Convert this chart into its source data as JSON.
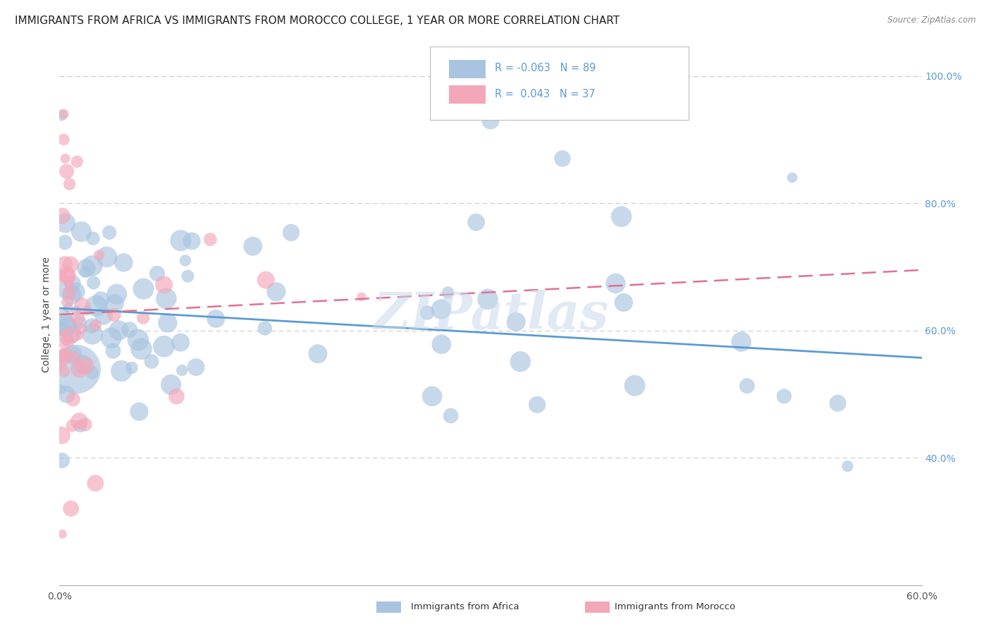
{
  "title": "IMMIGRANTS FROM AFRICA VS IMMIGRANTS FROM MOROCCO COLLEGE, 1 YEAR OR MORE CORRELATION CHART",
  "source": "Source: ZipAtlas.com",
  "ylabel": "College, 1 year or more",
  "xlim": [
    0.0,
    0.6
  ],
  "ylim": [
    0.2,
    1.05
  ],
  "yticks": [
    0.4,
    0.6,
    0.8,
    1.0
  ],
  "ytick_labels": [
    "40.0%",
    "60.0%",
    "80.0%",
    "100.0%"
  ],
  "xtick_positions": [
    0.0,
    0.1,
    0.2,
    0.3,
    0.4,
    0.5,
    0.6
  ],
  "xtick_labels": [
    "0.0%",
    "",
    "",
    "",
    "",
    "",
    "60.0%"
  ],
  "legend_r_africa": "-0.063",
  "legend_n_africa": "89",
  "legend_r_morocco": "0.043",
  "legend_n_morocco": "37",
  "color_africa": "#a8c4e0",
  "color_morocco": "#f4a7b9",
  "color_africa_line": "#5b9bd5",
  "color_morocco_line": "#e07090",
  "watermark": "ZIPatlas",
  "africa_trendline_x": [
    0.0,
    0.6
  ],
  "africa_trendline_y": [
    0.635,
    0.557
  ],
  "morocco_trendline_x": [
    0.0,
    0.6
  ],
  "morocco_trendline_y": [
    0.625,
    0.695
  ],
  "grid_color": "#cccccc",
  "background_color": "#ffffff",
  "title_fontsize": 11,
  "axis_label_fontsize": 10,
  "tick_fontsize": 10,
  "right_tick_color": "#5b9bd5"
}
